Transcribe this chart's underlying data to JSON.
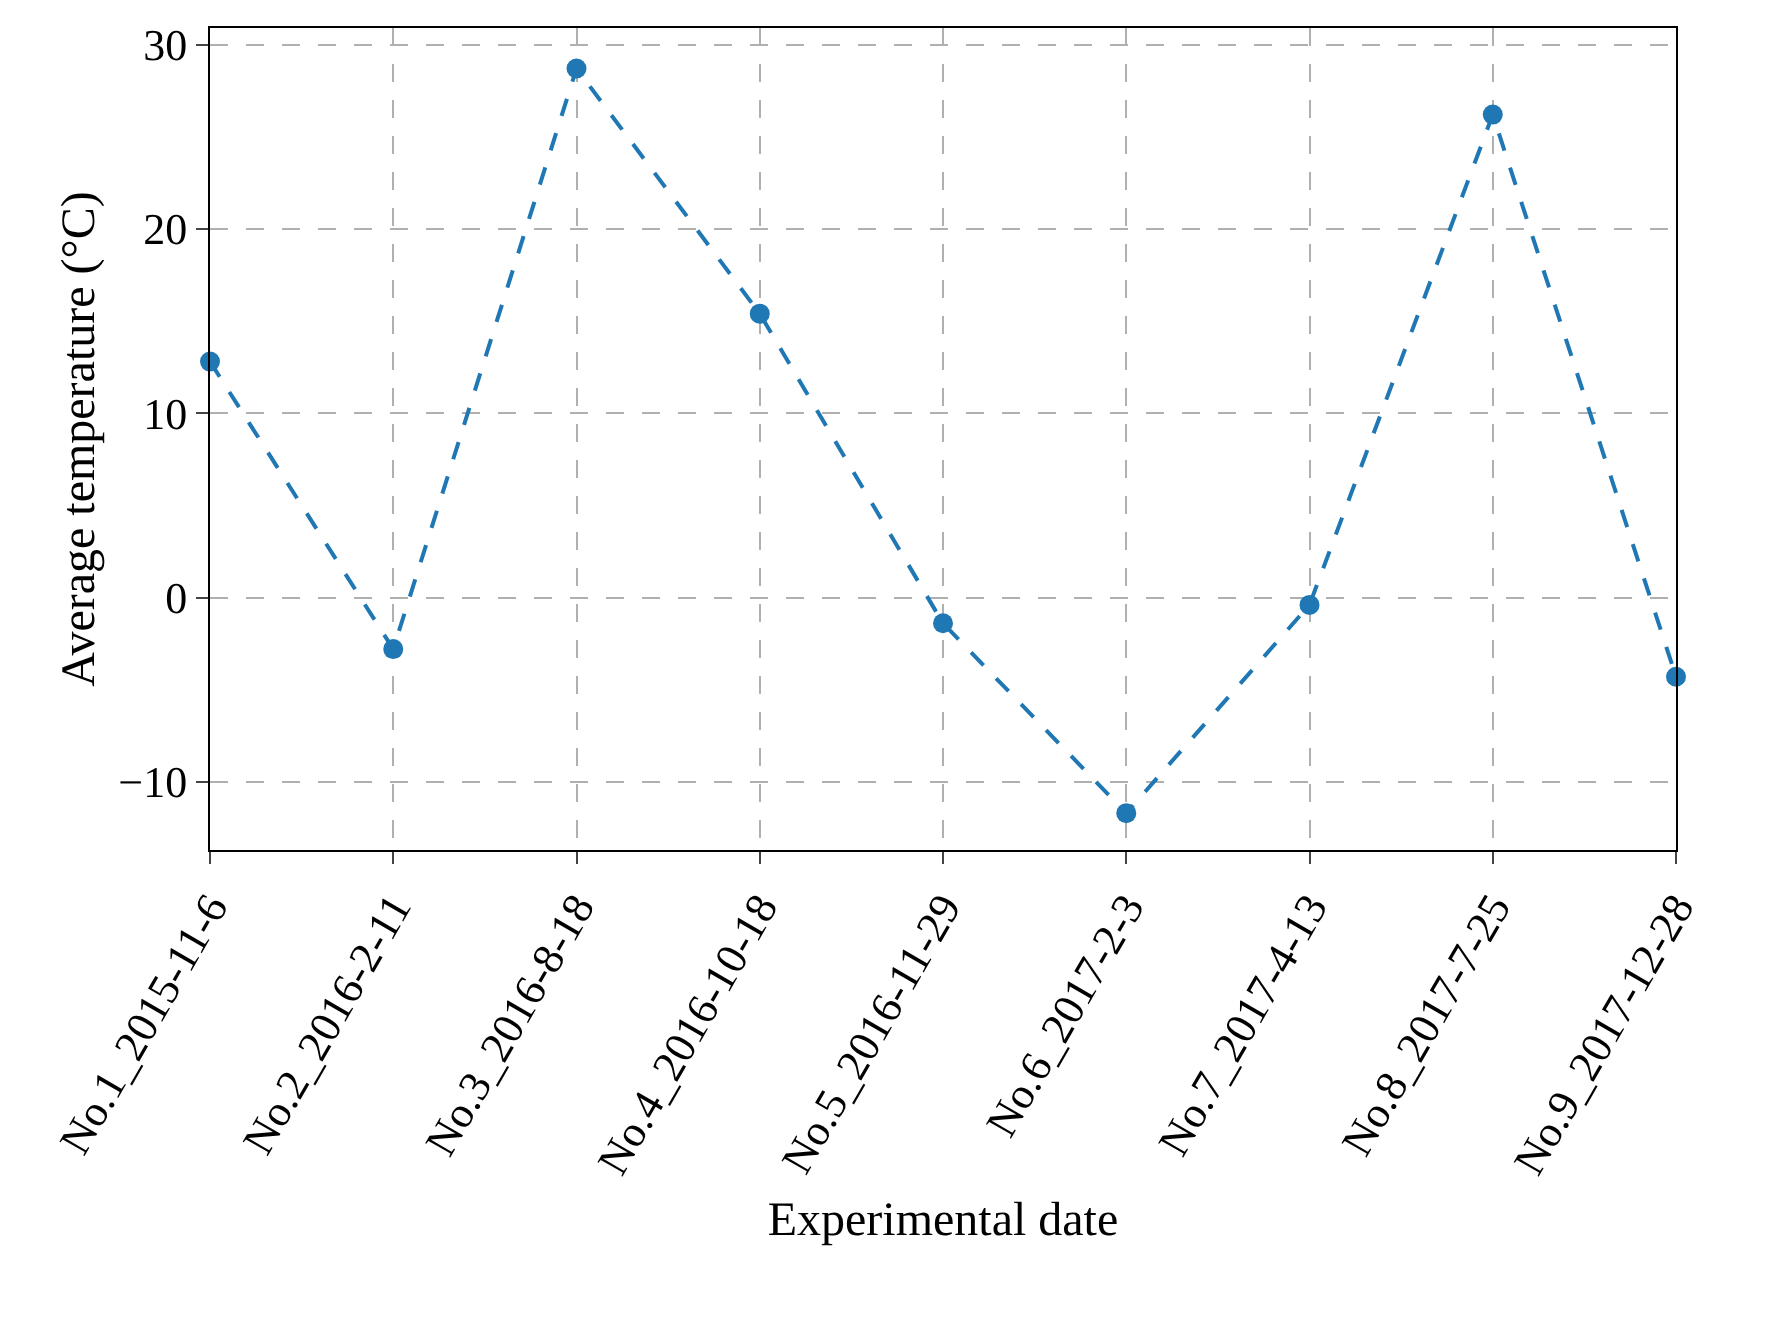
{
  "chart_data": {
    "type": "line",
    "xlabel": "Experimental date",
    "ylabel": "Average temperature (°C)",
    "categories": [
      "No.1_2015-11-6",
      "No.2_2016-2-11",
      "No.3_2016-8-18",
      "No.4_2016-10-18",
      "No.5_2016-11-29",
      "No.6_2017-2-3",
      "No.7_2017-4-13",
      "No.8_2017-7-25",
      "No.9_2017-12-28"
    ],
    "series": [
      {
        "color": "#1f77b4",
        "values": [
          12.8,
          -2.8,
          28.7,
          15.4,
          -1.4,
          -11.7,
          -0.4,
          26.2,
          -4.3
        ]
      }
    ],
    "ylim": [
      -13.7,
      30.9
    ],
    "yticks": [
      -10,
      0,
      10,
      20,
      30
    ],
    "grid": true,
    "marker": "circle",
    "line_style": "dashed"
  }
}
